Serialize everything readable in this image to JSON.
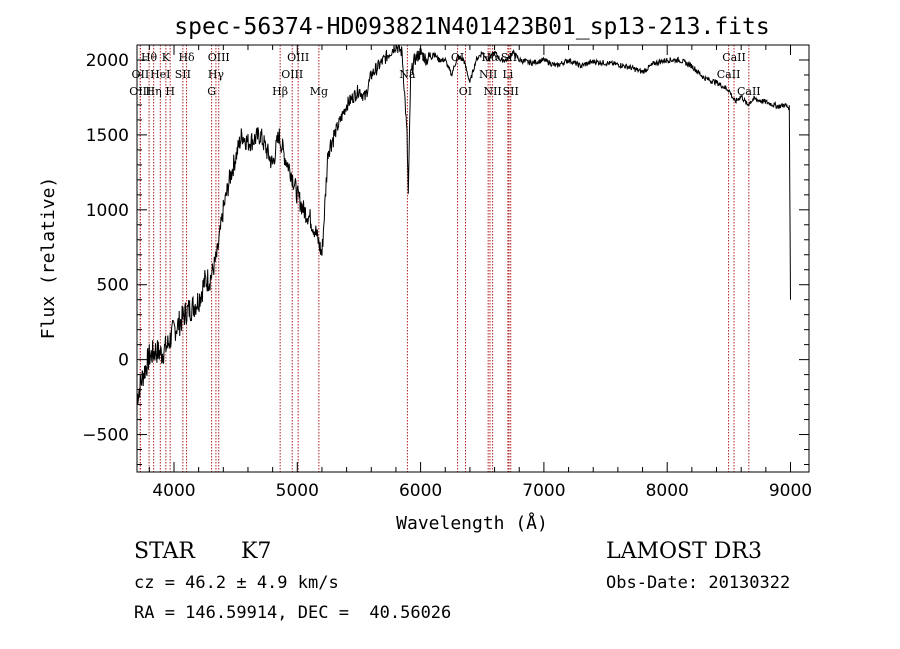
{
  "chart_data": {
    "type": "line",
    "title": "spec-56374-HD093821N401423B01_sp13-213.fits",
    "xlabel": "Wavelength (Å)",
    "ylabel": "Flux (relative)",
    "xlim": [
      3700,
      9150
    ],
    "ylim": [
      -750,
      2100
    ],
    "x_ticks": [
      4000,
      5000,
      6000,
      7000,
      8000,
      9000
    ],
    "x_tick_labels": [
      "4000",
      "5000",
      "6000",
      "7000",
      "8000",
      "9000"
    ],
    "y_ticks": [
      -500,
      0,
      500,
      1000,
      1500,
      2000
    ],
    "y_tick_labels": [
      "−500",
      "0",
      "500",
      "1000",
      "1500",
      "2000"
    ],
    "grid": false,
    "series": [
      {
        "name": "flux",
        "x": [
          3700,
          3750,
          3800,
          3850,
          3900,
          3950,
          4000,
          4050,
          4100,
          4150,
          4200,
          4250,
          4300,
          4350,
          4400,
          4450,
          4500,
          4550,
          4600,
          4650,
          4700,
          4750,
          4800,
          4850,
          4900,
          4950,
          5000,
          5050,
          5100,
          5150,
          5200,
          5250,
          5300,
          5350,
          5400,
          5450,
          5500,
          5550,
          5600,
          5650,
          5700,
          5750,
          5800,
          5850,
          5890,
          5900,
          5920,
          5950,
          6000,
          6050,
          6100,
          6150,
          6200,
          6250,
          6300,
          6350,
          6400,
          6450,
          6500,
          6550,
          6600,
          6650,
          6700,
          6750,
          6800,
          6900,
          7000,
          7100,
          7200,
          7300,
          7400,
          7500,
          7600,
          7700,
          7800,
          7900,
          8000,
          8100,
          8200,
          8300,
          8400,
          8500,
          8550,
          8600,
          8650,
          8700,
          8800,
          8900,
          8950,
          8990,
          9000
        ],
        "y": [
          -250,
          -100,
          20,
          60,
          40,
          100,
          200,
          250,
          320,
          350,
          400,
          520,
          550,
          700,
          1000,
          1200,
          1350,
          1500,
          1450,
          1470,
          1500,
          1400,
          1300,
          1500,
          1350,
          1250,
          1100,
          1000,
          950,
          850,
          700,
          1400,
          1500,
          1600,
          1700,
          1750,
          1800,
          1750,
          1900,
          1950,
          2000,
          2050,
          2100,
          2050,
          1500,
          1100,
          1900,
          2000,
          2050,
          2000,
          2050,
          2000,
          2000,
          1900,
          2020,
          2000,
          1850,
          2000,
          2050,
          2000,
          2050,
          2000,
          2000,
          2050,
          2000,
          1980,
          2000,
          1960,
          2000,
          1960,
          1990,
          1980,
          1970,
          1950,
          1920,
          1980,
          2000,
          2000,
          1960,
          1880,
          1850,
          1800,
          1720,
          1760,
          1700,
          1740,
          1720,
          1690,
          1700,
          1680,
          400
        ]
      }
    ],
    "line_markers": [
      {
        "label": "Hθ",
        "x": 3798,
        "row": 1
      },
      {
        "label": "OII",
        "x": 3727,
        "row": 2
      },
      {
        "label": "OIII",
        "x": 3727,
        "row": 3
      },
      {
        "label": "K",
        "x": 3934,
        "row": 1
      },
      {
        "label": "HeI",
        "x": 3889,
        "row": 2
      },
      {
        "label": "Hη",
        "x": 3835,
        "row": 3
      },
      {
        "label": "H",
        "x": 3969,
        "row": 3
      },
      {
        "label": "SII",
        "x": 4072,
        "row": 2
      },
      {
        "label": "Hδ",
        "x": 4102,
        "row": 1
      },
      {
        "label": "OIII",
        "x": 4363,
        "row": 1
      },
      {
        "label": "Hγ",
        "x": 4340,
        "row": 2
      },
      {
        "label": "G",
        "x": 4305,
        "row": 3
      },
      {
        "label": "Hβ",
        "x": 4861,
        "row": 3
      },
      {
        "label": "OIII",
        "x": 5007,
        "row": 1
      },
      {
        "label": "OIII",
        "x": 4959,
        "row": 2
      },
      {
        "label": "Mg",
        "x": 5175,
        "row": 3
      },
      {
        "label": "Na",
        "x": 5893,
        "row": 2
      },
      {
        "label": "OI",
        "x": 6300,
        "row": 1
      },
      {
        "label": "OI",
        "x": 6364,
        "row": 3
      },
      {
        "label": "Hα",
        "x": 6563,
        "row": 1
      },
      {
        "label": "NII",
        "x": 6548,
        "row": 2
      },
      {
        "label": "NII",
        "x": 6584,
        "row": 3
      },
      {
        "label": "SII",
        "x": 6717,
        "row": 1
      },
      {
        "label": "Li",
        "x": 6708,
        "row": 2
      },
      {
        "label": "SII",
        "x": 6731,
        "row": 3
      },
      {
        "label": "CaII",
        "x": 8542,
        "row": 1
      },
      {
        "label": "CaII",
        "x": 8498,
        "row": 2
      },
      {
        "label": "CaII",
        "x": 8662,
        "row": 3
      }
    ]
  },
  "info": {
    "object_class": "STAR",
    "subclass": "K7",
    "survey": "LAMOST DR3",
    "cz": "cz = 46.2 ± 4.9 km/s",
    "obs_date": "Obs-Date: 20130322",
    "coords": "RA = 146.59914, DEC =  40.56026"
  },
  "colors": {
    "marker": "#b22222",
    "spectrum": "#000000",
    "axes": "#000000"
  }
}
